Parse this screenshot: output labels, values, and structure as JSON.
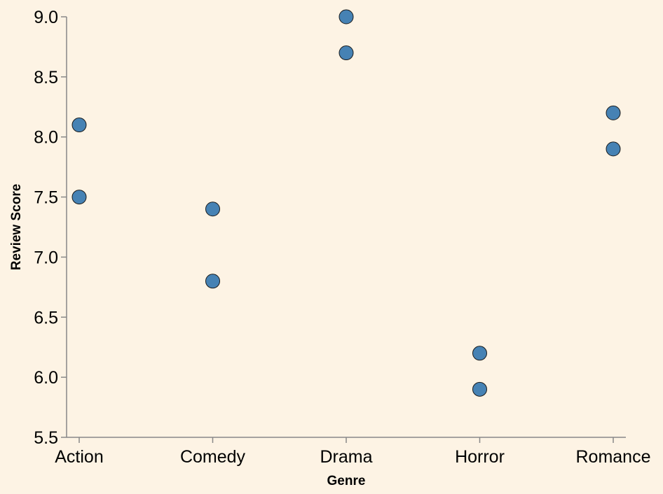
{
  "chart_data": {
    "type": "scatter",
    "xlabel": "Genre",
    "ylabel": "Review Score",
    "categories": [
      "Action",
      "Comedy",
      "Drama",
      "Horror",
      "Romance"
    ],
    "y_ticks": [
      "5.5",
      "6.0",
      "6.5",
      "7.0",
      "7.5",
      "8.0",
      "8.5",
      "9.0"
    ],
    "ylim": [
      5.5,
      9.0
    ],
    "grid": false,
    "legend": "none",
    "points": [
      {
        "x": "Action",
        "y": 8.1
      },
      {
        "x": "Action",
        "y": 7.5
      },
      {
        "x": "Comedy",
        "y": 7.4
      },
      {
        "x": "Comedy",
        "y": 6.8
      },
      {
        "x": "Drama",
        "y": 9.0
      },
      {
        "x": "Drama",
        "y": 8.7
      },
      {
        "x": "Horror",
        "y": 6.2
      },
      {
        "x": "Horror",
        "y": 5.9
      },
      {
        "x": "Romance",
        "y": 8.2
      },
      {
        "x": "Romance",
        "y": 7.9
      }
    ],
    "colors": {
      "background": "#fdf3e4",
      "point_fill": "#4682b4",
      "point_stroke": "#1a1a1a",
      "axis": "#888888"
    }
  }
}
